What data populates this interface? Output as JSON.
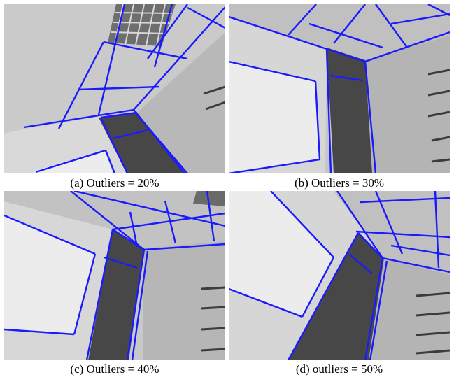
{
  "figure": {
    "captions": [
      "(a) Outliers = 20%",
      "(b) Outliers = 30%",
      "(c) Outliers = 40%",
      "(d) outliers = 50%"
    ]
  },
  "colors": {
    "line": "#1a1aff",
    "background": "#ffffff",
    "door": "#474747",
    "whiteboard": "#e8e8e8",
    "wall": "#cfcfcf",
    "ceiling": "#c4c4c4"
  }
}
